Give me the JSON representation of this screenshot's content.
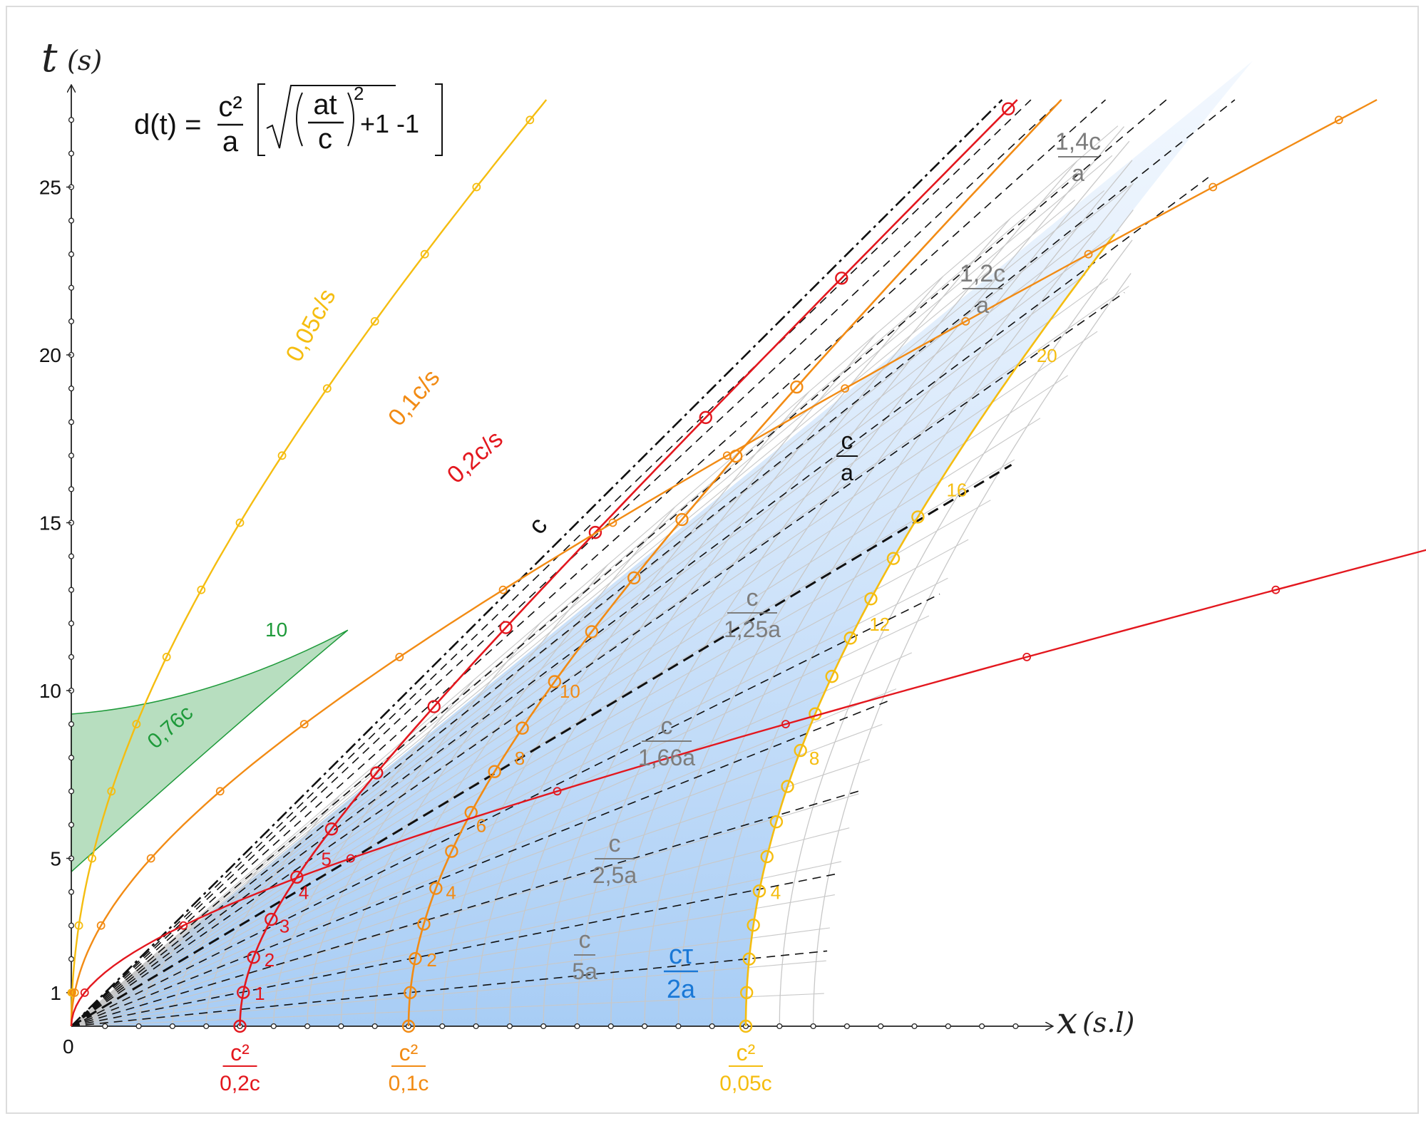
{
  "formula": {
    "lhs": "d(t) =",
    "frac_num": "c²",
    "frac_den": "a",
    "inner_num": "at",
    "inner_den": "c",
    "exponent": "2",
    "tail": "+1 -1"
  },
  "axes": {
    "t_label": "t",
    "t_unit": "(s)",
    "x_label": "x",
    "x_unit": "(s.l)",
    "origin": "0",
    "t_ticks": [
      {
        "v": 1,
        "label": "1"
      },
      {
        "v": 5,
        "label": "5"
      },
      {
        "v": 10,
        "label": "10"
      },
      {
        "v": 15,
        "label": "15"
      },
      {
        "v": 20,
        "label": "20"
      },
      {
        "v": 25,
        "label": "25"
      }
    ]
  },
  "colors": {
    "red": "#e3171e",
    "orange": "#f28b14",
    "yellow": "#f5bd10",
    "green": "#1e9a3a",
    "green_fill": "#9fd3aa",
    "blue_light": "#e9f3fd",
    "blue_dark": "#a8cdf5",
    "grid": "#c8c8c8",
    "dashed": "#111111",
    "gray_text": "#7d7d7d",
    "blue_text": "#1a78d6"
  },
  "curves": [
    {
      "key": "red",
      "start_x": 5,
      "label": "0,2c/s",
      "bottom_num": "c²",
      "bottom_den": "0,2c",
      "markers": [
        {
          "t": 1,
          "label": "1"
        },
        {
          "t": 2,
          "label": "2"
        },
        {
          "t": 3,
          "label": "3"
        },
        {
          "t": 4,
          "label": "4"
        },
        {
          "t": 5,
          "label": "5"
        }
      ]
    },
    {
      "key": "orange",
      "start_x": 10,
      "label": "0,1c/s",
      "bottom_num": "c²",
      "bottom_den": "0,1c",
      "markers": [
        {
          "t": 2,
          "label": "2"
        },
        {
          "t": 4,
          "label": "4"
        },
        {
          "t": 6,
          "label": "6"
        },
        {
          "t": 8,
          "label": "8"
        },
        {
          "t": 10,
          "label": "10"
        }
      ]
    },
    {
      "key": "yellow",
      "start_x": 20,
      "label": "0,05c/s",
      "bottom_num": "c²",
      "bottom_den": "0,05c",
      "markers": [
        {
          "t": 4,
          "label": "4"
        },
        {
          "t": 8,
          "label": "8"
        },
        {
          "t": 12,
          "label": "12"
        },
        {
          "t": 16,
          "label": "16"
        },
        {
          "t": 20,
          "label": "20"
        }
      ]
    }
  ],
  "light_line_label": "c",
  "green_region": {
    "label": "0,76c",
    "tip_label": "10"
  },
  "slope_labels": [
    {
      "num": "c",
      "den": "5a",
      "color": "gray"
    },
    {
      "num": "c",
      "den": "2,5a",
      "color": "gray"
    },
    {
      "num": "c",
      "den": "1,66a",
      "color": "gray"
    },
    {
      "num": "c",
      "den": "1,25a",
      "color": "gray"
    },
    {
      "num": "c",
      "den": "a",
      "color": "black"
    },
    {
      "num": "1,2c",
      "den": "a",
      "color": "gray"
    },
    {
      "num": "1,4c",
      "den": "a",
      "color": "gray"
    }
  ],
  "tau_label": {
    "num": "cτ",
    "den": "2a"
  }
}
